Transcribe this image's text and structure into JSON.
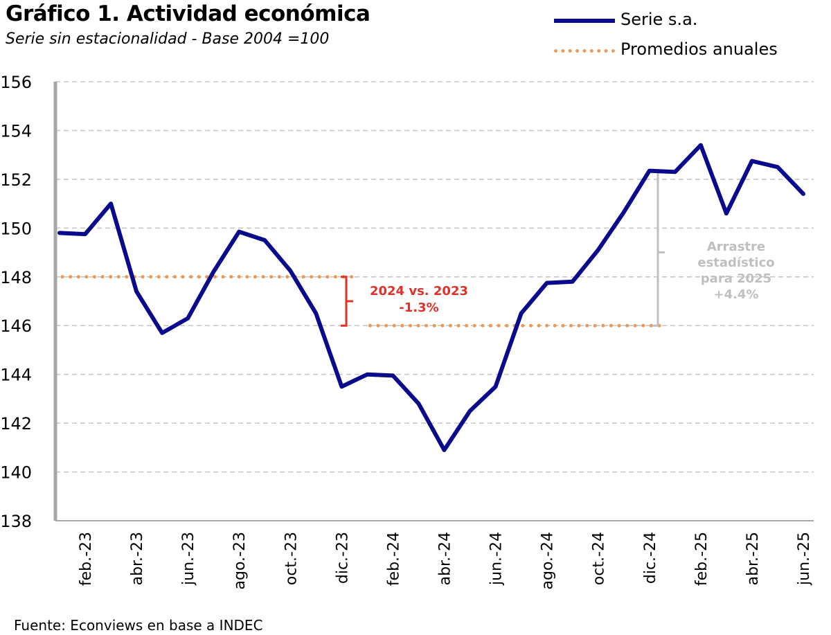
{
  "header": {
    "title": "Gráfico 1. Actividad económica",
    "subtitle": "Serie sin estacionalidad - Base 2004 =100"
  },
  "source": "Fuente: Econviews en base a INDEC",
  "colors": {
    "series": "#0a0a8c",
    "averages": "#e99a5a",
    "bracket_red": "#e0312a",
    "bracket_gray": "#bfbfbf",
    "grid": "#c8c8c8",
    "axis": "#a6a6a6"
  },
  "chart_data": {
    "type": "line",
    "x": [
      "ene.-23",
      "feb.-23",
      "mar.-23",
      "abr.-23",
      "may.-23",
      "jun.-23",
      "jul.-23",
      "ago.-23",
      "sep.-23",
      "oct.-23",
      "nov.-23",
      "dic.-23",
      "ene.-24",
      "feb.-24",
      "mar.-24",
      "abr.-24",
      "may.-24",
      "jun.-24",
      "jul.-24",
      "ago.-24",
      "sep.-24",
      "oct.-24",
      "nov.-24",
      "dic.-24",
      "ene.-25",
      "feb.-25",
      "mar.-25",
      "abr.-25",
      "may.-25",
      "jun.-25"
    ],
    "x_tick_labels": [
      "feb.-23",
      "abr.-23",
      "jun.-23",
      "ago.-23",
      "oct.-23",
      "dic.-23",
      "feb.-24",
      "abr.-24",
      "jun.-24",
      "ago.-24",
      "oct.-24",
      "dic.-24",
      "feb.-25",
      "abr.-25",
      "jun.-25"
    ],
    "series": [
      {
        "name": "Serie s.a.",
        "values": [
          149.8,
          149.75,
          151.0,
          147.4,
          145.7,
          146.3,
          148.2,
          149.85,
          149.5,
          148.25,
          146.5,
          143.5,
          144.0,
          143.95,
          142.8,
          140.9,
          142.5,
          143.5,
          146.5,
          147.75,
          147.8,
          149.1,
          150.65,
          152.35,
          152.3,
          153.4,
          150.6,
          152.75,
          152.5,
          151.4
        ]
      },
      {
        "name": "Promedios anuales",
        "segments": [
          {
            "from": "ene.-23",
            "to": "dic.-23",
            "value": 148.0
          },
          {
            "from": "ene.-24",
            "to": "dic.-24",
            "value": 146.0
          }
        ]
      }
    ],
    "annotations": [
      {
        "id": "bracket-2024-vs-2023",
        "lines": [
          "2024 vs. 2023",
          "-1.3%"
        ],
        "from": 146.0,
        "to": 148.0
      },
      {
        "id": "bracket-arrastre",
        "lines": [
          "Arrastre",
          "estadístico",
          "para 2025",
          "+4.4%"
        ],
        "from": 146.0,
        "to": 152.35
      }
    ],
    "ylim": [
      138,
      156
    ],
    "yticks": [
      138,
      140,
      142,
      144,
      146,
      148,
      150,
      152,
      154,
      156
    ],
    "grid": true,
    "legend": "top-right"
  }
}
